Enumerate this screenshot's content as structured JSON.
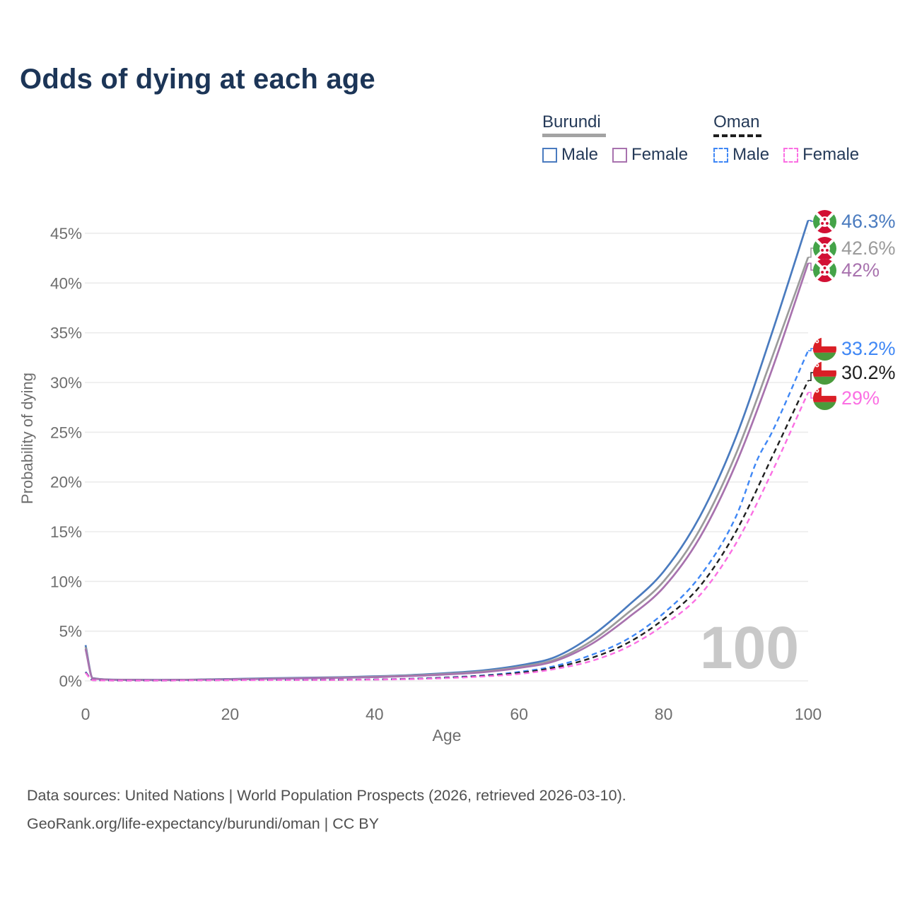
{
  "title": "Odds of dying at each age",
  "legend": {
    "groups": [
      {
        "label": "Burundi",
        "line_style": "solid",
        "underline_color": "#a3a3a3",
        "items": [
          {
            "label": "Male",
            "color": "#4a7bbf"
          },
          {
            "label": "Female",
            "color": "#a872ae"
          }
        ]
      },
      {
        "label": "Oman",
        "line_style": "dashed",
        "underline_color": "#1f1f1f",
        "items": [
          {
            "label": "Male",
            "color": "#3f87f5"
          },
          {
            "label": "Female",
            "color": "#fb6fe3"
          }
        ]
      }
    ]
  },
  "watermark_age": "100",
  "footer": {
    "line1": "Data sources: United Nations | World Population Prospects (2026, retrieved 2026-03-10).",
    "line2": "GeoRank.org/life-expectancy/burundi/oman | CC BY"
  },
  "chart_data": {
    "type": "line",
    "title": "Odds of dying at each age",
    "xlabel": "Age",
    "ylabel": "Probability of dying",
    "xlim": [
      0,
      100
    ],
    "ylim_percent": [
      0,
      47
    ],
    "grid": "horizontal-only",
    "x_ticks": [
      0,
      20,
      40,
      60,
      80,
      100
    ],
    "y_ticks": [
      {
        "value": 0,
        "label": "0%"
      },
      {
        "value": 5,
        "label": "5%"
      },
      {
        "value": 10,
        "label": "10%"
      },
      {
        "value": 15,
        "label": "15%"
      },
      {
        "value": 20,
        "label": "20%"
      },
      {
        "value": 25,
        "label": "25%"
      },
      {
        "value": 30,
        "label": "30%"
      },
      {
        "value": 35,
        "label": "35%"
      },
      {
        "value": 40,
        "label": "40%"
      },
      {
        "value": 45,
        "label": "45%"
      }
    ],
    "legend_position": "top-right",
    "series": [
      {
        "name": "Burundi Male",
        "country": "Burundi",
        "sex": "Male",
        "flag": "burundi",
        "color": "#4a7bbf",
        "dashed": false,
        "end_label": "46.3%",
        "points_age_percent": [
          [
            0,
            3.6
          ],
          [
            1,
            0.28
          ],
          [
            5,
            0.12
          ],
          [
            10,
            0.1
          ],
          [
            15,
            0.13
          ],
          [
            20,
            0.19
          ],
          [
            25,
            0.26
          ],
          [
            30,
            0.31
          ],
          [
            35,
            0.37
          ],
          [
            40,
            0.46
          ],
          [
            45,
            0.58
          ],
          [
            50,
            0.78
          ],
          [
            55,
            1.05
          ],
          [
            60,
            1.55
          ],
          [
            65,
            2.4
          ],
          [
            70,
            4.5
          ],
          [
            75,
            7.5
          ],
          [
            80,
            11.0
          ],
          [
            85,
            16.5
          ],
          [
            90,
            24.5
          ],
          [
            95,
            35.0
          ],
          [
            100,
            46.3
          ]
        ]
      },
      {
        "name": "Burundi Both sexes",
        "country": "Burundi",
        "sex": "Both",
        "flag": "burundi",
        "color": "#9b9b9b",
        "dashed": false,
        "end_label": "42.6%",
        "points_age_percent": [
          [
            0,
            3.4
          ],
          [
            1,
            0.26
          ],
          [
            5,
            0.11
          ],
          [
            10,
            0.09
          ],
          [
            15,
            0.12
          ],
          [
            20,
            0.17
          ],
          [
            25,
            0.23
          ],
          [
            30,
            0.28
          ],
          [
            35,
            0.33
          ],
          [
            40,
            0.42
          ],
          [
            45,
            0.53
          ],
          [
            50,
            0.71
          ],
          [
            55,
            0.95
          ],
          [
            60,
            1.4
          ],
          [
            65,
            2.15
          ],
          [
            70,
            4.0
          ],
          [
            75,
            6.8
          ],
          [
            80,
            10.0
          ],
          [
            85,
            15.2
          ],
          [
            90,
            22.8
          ],
          [
            95,
            32.5
          ],
          [
            100,
            42.6
          ]
        ]
      },
      {
        "name": "Burundi Female",
        "country": "Burundi",
        "sex": "Female",
        "flag": "burundi",
        "color": "#a872ae",
        "dashed": false,
        "end_label": "42%",
        "points_age_percent": [
          [
            0,
            3.2
          ],
          [
            1,
            0.24
          ],
          [
            5,
            0.1
          ],
          [
            10,
            0.08
          ],
          [
            15,
            0.11
          ],
          [
            20,
            0.15
          ],
          [
            25,
            0.2
          ],
          [
            30,
            0.25
          ],
          [
            35,
            0.3
          ],
          [
            40,
            0.38
          ],
          [
            45,
            0.48
          ],
          [
            50,
            0.65
          ],
          [
            55,
            0.87
          ],
          [
            60,
            1.3
          ],
          [
            65,
            2.0
          ],
          [
            70,
            3.7
          ],
          [
            75,
            6.3
          ],
          [
            80,
            9.4
          ],
          [
            85,
            14.4
          ],
          [
            90,
            21.8
          ],
          [
            95,
            31.3
          ],
          [
            100,
            42.0
          ]
        ]
      },
      {
        "name": "Oman Male",
        "country": "Oman",
        "sex": "Male",
        "flag": "oman",
        "color": "#3f87f5",
        "dashed": true,
        "end_label": "33.2%",
        "points_age_percent": [
          [
            0,
            0.9
          ],
          [
            1,
            0.08
          ],
          [
            5,
            0.04
          ],
          [
            10,
            0.04
          ],
          [
            15,
            0.06
          ],
          [
            20,
            0.09
          ],
          [
            25,
            0.1
          ],
          [
            30,
            0.11
          ],
          [
            35,
            0.12
          ],
          [
            40,
            0.15
          ],
          [
            45,
            0.22
          ],
          [
            50,
            0.35
          ],
          [
            55,
            0.55
          ],
          [
            60,
            0.9
          ],
          [
            65,
            1.5
          ],
          [
            70,
            2.6
          ],
          [
            75,
            4.2
          ],
          [
            80,
            6.8
          ],
          [
            85,
            10.5
          ],
          [
            90,
            16.5
          ],
          [
            93,
            22.3
          ],
          [
            95,
            25.0
          ],
          [
            100,
            33.2
          ]
        ]
      },
      {
        "name": "Oman Both sexes",
        "country": "Oman",
        "sex": "Both",
        "flag": "oman",
        "color": "#1f1f1f",
        "dashed": true,
        "end_label": "30.2%",
        "points_age_percent": [
          [
            0,
            0.85
          ],
          [
            1,
            0.075
          ],
          [
            5,
            0.04
          ],
          [
            10,
            0.04
          ],
          [
            15,
            0.055
          ],
          [
            20,
            0.08
          ],
          [
            25,
            0.09
          ],
          [
            30,
            0.1
          ],
          [
            35,
            0.11
          ],
          [
            40,
            0.14
          ],
          [
            45,
            0.2
          ],
          [
            50,
            0.32
          ],
          [
            55,
            0.5
          ],
          [
            60,
            0.8
          ],
          [
            65,
            1.35
          ],
          [
            70,
            2.3
          ],
          [
            75,
            3.8
          ],
          [
            80,
            6.2
          ],
          [
            85,
            9.5
          ],
          [
            90,
            15.0
          ],
          [
            95,
            22.5
          ],
          [
            100,
            30.2
          ]
        ]
      },
      {
        "name": "Oman Female",
        "country": "Oman",
        "sex": "Female",
        "flag": "oman",
        "color": "#fb6fe3",
        "dashed": true,
        "end_label": "29%",
        "points_age_percent": [
          [
            0,
            0.8
          ],
          [
            1,
            0.07
          ],
          [
            5,
            0.035
          ],
          [
            10,
            0.035
          ],
          [
            15,
            0.05
          ],
          [
            20,
            0.07
          ],
          [
            25,
            0.08
          ],
          [
            30,
            0.09
          ],
          [
            35,
            0.1
          ],
          [
            40,
            0.13
          ],
          [
            45,
            0.18
          ],
          [
            50,
            0.28
          ],
          [
            55,
            0.44
          ],
          [
            60,
            0.7
          ],
          [
            65,
            1.2
          ],
          [
            70,
            2.0
          ],
          [
            75,
            3.4
          ],
          [
            80,
            5.6
          ],
          [
            85,
            8.6
          ],
          [
            90,
            13.8
          ],
          [
            95,
            21.0
          ],
          [
            100,
            29.0
          ]
        ]
      }
    ]
  }
}
